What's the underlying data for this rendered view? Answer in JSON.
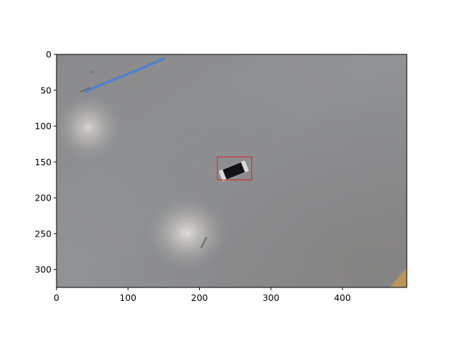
{
  "figure": {
    "image_extent": {
      "x": [
        0,
        490
      ],
      "y": [
        0,
        325
      ]
    },
    "x_ticks": [
      {
        "value": 0,
        "label": "0"
      },
      {
        "value": 100,
        "label": "100"
      },
      {
        "value": 200,
        "label": "200"
      },
      {
        "value": 300,
        "label": "300"
      },
      {
        "value": 400,
        "label": "400"
      }
    ],
    "y_ticks": [
      {
        "value": 0,
        "label": "0"
      },
      {
        "value": 50,
        "label": "50"
      },
      {
        "value": 100,
        "label": "100"
      },
      {
        "value": 150,
        "label": "150"
      },
      {
        "value": 200,
        "label": "200"
      },
      {
        "value": 250,
        "label": "250"
      },
      {
        "value": 300,
        "label": "300"
      }
    ],
    "detection_box": {
      "x0": 225,
      "y0": 143,
      "x1": 273,
      "y1": 175,
      "color": "#e02020"
    },
    "colors": {
      "floor": "#8e8f93",
      "blue_line": "#4a7fd4",
      "component_body": "#121218",
      "component_terminal": "#d8d8d8",
      "wood_corner": "#b8955a"
    }
  }
}
